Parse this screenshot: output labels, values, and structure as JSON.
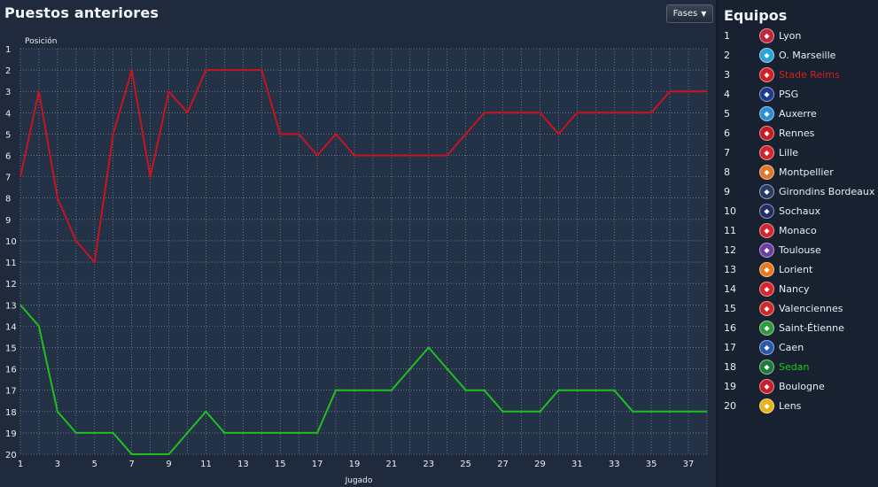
{
  "header": {
    "title": "Puestos anteriores",
    "fases_label": "Fases"
  },
  "sidebar": {
    "title": "Equipos"
  },
  "teams": [
    {
      "pos": "1",
      "name": "Lyon",
      "icon": "lyon-crest-icon",
      "color": "#c0283a",
      "highlight": null
    },
    {
      "pos": "2",
      "name": "O. Marseille",
      "icon": "marseille-crest-icon",
      "color": "#2aa3d8",
      "highlight": null
    },
    {
      "pos": "3",
      "name": "Stade Reims",
      "icon": "reims-crest-icon",
      "color": "#d21f26",
      "highlight": "#d42020"
    },
    {
      "pos": "4",
      "name": "PSG",
      "icon": "psg-crest-icon",
      "color": "#1d3b8a",
      "highlight": null
    },
    {
      "pos": "5",
      "name": "Auxerre",
      "icon": "auxerre-crest-icon",
      "color": "#2a8fd6",
      "highlight": null
    },
    {
      "pos": "6",
      "name": "Rennes",
      "icon": "rennes-crest-icon",
      "color": "#c41e24",
      "highlight": null
    },
    {
      "pos": "7",
      "name": "Lille",
      "icon": "lille-crest-icon",
      "color": "#d3262e",
      "highlight": null
    },
    {
      "pos": "8",
      "name": "Montpellier",
      "icon": "montpellier-crest-icon",
      "color": "#e2772a",
      "highlight": null
    },
    {
      "pos": "9",
      "name": "Girondins Bordeaux",
      "icon": "bordeaux-crest-icon",
      "color": "#2a3a66",
      "highlight": null
    },
    {
      "pos": "10",
      "name": "Sochaux",
      "icon": "sochaux-crest-icon",
      "color": "#1f2f66",
      "highlight": null
    },
    {
      "pos": "11",
      "name": "Monaco",
      "icon": "monaco-crest-icon",
      "color": "#d22630",
      "highlight": null
    },
    {
      "pos": "12",
      "name": "Toulouse",
      "icon": "toulouse-crest-icon",
      "color": "#6b3fa0",
      "highlight": null
    },
    {
      "pos": "13",
      "name": "Lorient",
      "icon": "lorient-crest-icon",
      "color": "#e87a1e",
      "highlight": null
    },
    {
      "pos": "14",
      "name": "Nancy",
      "icon": "nancy-crest-icon",
      "color": "#d8262e",
      "highlight": null
    },
    {
      "pos": "15",
      "name": "Valenciennes",
      "icon": "valenciennes-crest-icon",
      "color": "#cf2a2a",
      "highlight": null
    },
    {
      "pos": "16",
      "name": "Saint-Étienne",
      "icon": "saint-etienne-crest-icon",
      "color": "#2e9a3c",
      "highlight": null
    },
    {
      "pos": "17",
      "name": "Caen",
      "icon": "caen-crest-icon",
      "color": "#2a57b0",
      "highlight": null
    },
    {
      "pos": "18",
      "name": "Sedan",
      "icon": "sedan-crest-icon",
      "color": "#1e7a3a",
      "highlight": "#1fcc1f"
    },
    {
      "pos": "19",
      "name": "Boulogne",
      "icon": "boulogne-crest-icon",
      "color": "#c8202a",
      "highlight": null
    },
    {
      "pos": "20",
      "name": "Lens",
      "icon": "lens-crest-icon",
      "color": "#e8b21a",
      "highlight": null
    }
  ],
  "chart_data": {
    "type": "line",
    "xlabel": "Jugado",
    "ylabel": "Posición",
    "xlim": [
      1,
      38
    ],
    "ylim": [
      1,
      20
    ],
    "y_inverted": true,
    "grid": true,
    "x_tick_labels": [
      "1",
      "3",
      "5",
      "7",
      "9",
      "11",
      "13",
      "15",
      "17",
      "19",
      "21",
      "23",
      "25",
      "27",
      "29",
      "31",
      "33",
      "35",
      "37"
    ],
    "y_tick_labels": [
      "1",
      "2",
      "3",
      "4",
      "5",
      "6",
      "7",
      "8",
      "9",
      "10",
      "11",
      "12",
      "13",
      "14",
      "15",
      "16",
      "17",
      "18",
      "19",
      "20"
    ],
    "series": [
      {
        "team": "Stade Reims",
        "color": "#c8141e",
        "x": [
          1,
          2,
          3,
          4,
          5,
          6,
          7,
          8,
          9,
          10,
          11,
          12,
          13,
          14,
          15,
          16,
          17,
          18,
          19,
          20,
          21,
          22,
          23,
          24,
          25,
          26,
          27,
          28,
          29,
          30,
          31,
          32,
          33,
          34,
          35,
          36,
          37,
          38
        ],
        "y": [
          7,
          3,
          8,
          10,
          11,
          5,
          2,
          7,
          3,
          4,
          2,
          2,
          2,
          2,
          5,
          5,
          6,
          5,
          6,
          6,
          6,
          6,
          6,
          6,
          5,
          4,
          4,
          4,
          4,
          5,
          4,
          4,
          4,
          4,
          4,
          3,
          3,
          3
        ]
      },
      {
        "team": "Sedan",
        "color": "#1fbf1f",
        "x": [
          1,
          2,
          3,
          4,
          5,
          6,
          7,
          8,
          9,
          10,
          11,
          12,
          13,
          14,
          15,
          16,
          17,
          18,
          19,
          20,
          21,
          22,
          23,
          24,
          25,
          26,
          27,
          28,
          29,
          30,
          31,
          32,
          33,
          34,
          35,
          36,
          37,
          38
        ],
        "y": [
          13,
          14,
          18,
          19,
          19,
          19,
          20,
          20,
          20,
          19,
          18,
          19,
          19,
          19,
          19,
          19,
          19,
          17,
          17,
          17,
          17,
          16,
          15,
          16,
          17,
          17,
          18,
          18,
          18,
          17,
          17,
          17,
          17,
          18,
          18,
          18,
          18,
          18
        ]
      }
    ]
  }
}
